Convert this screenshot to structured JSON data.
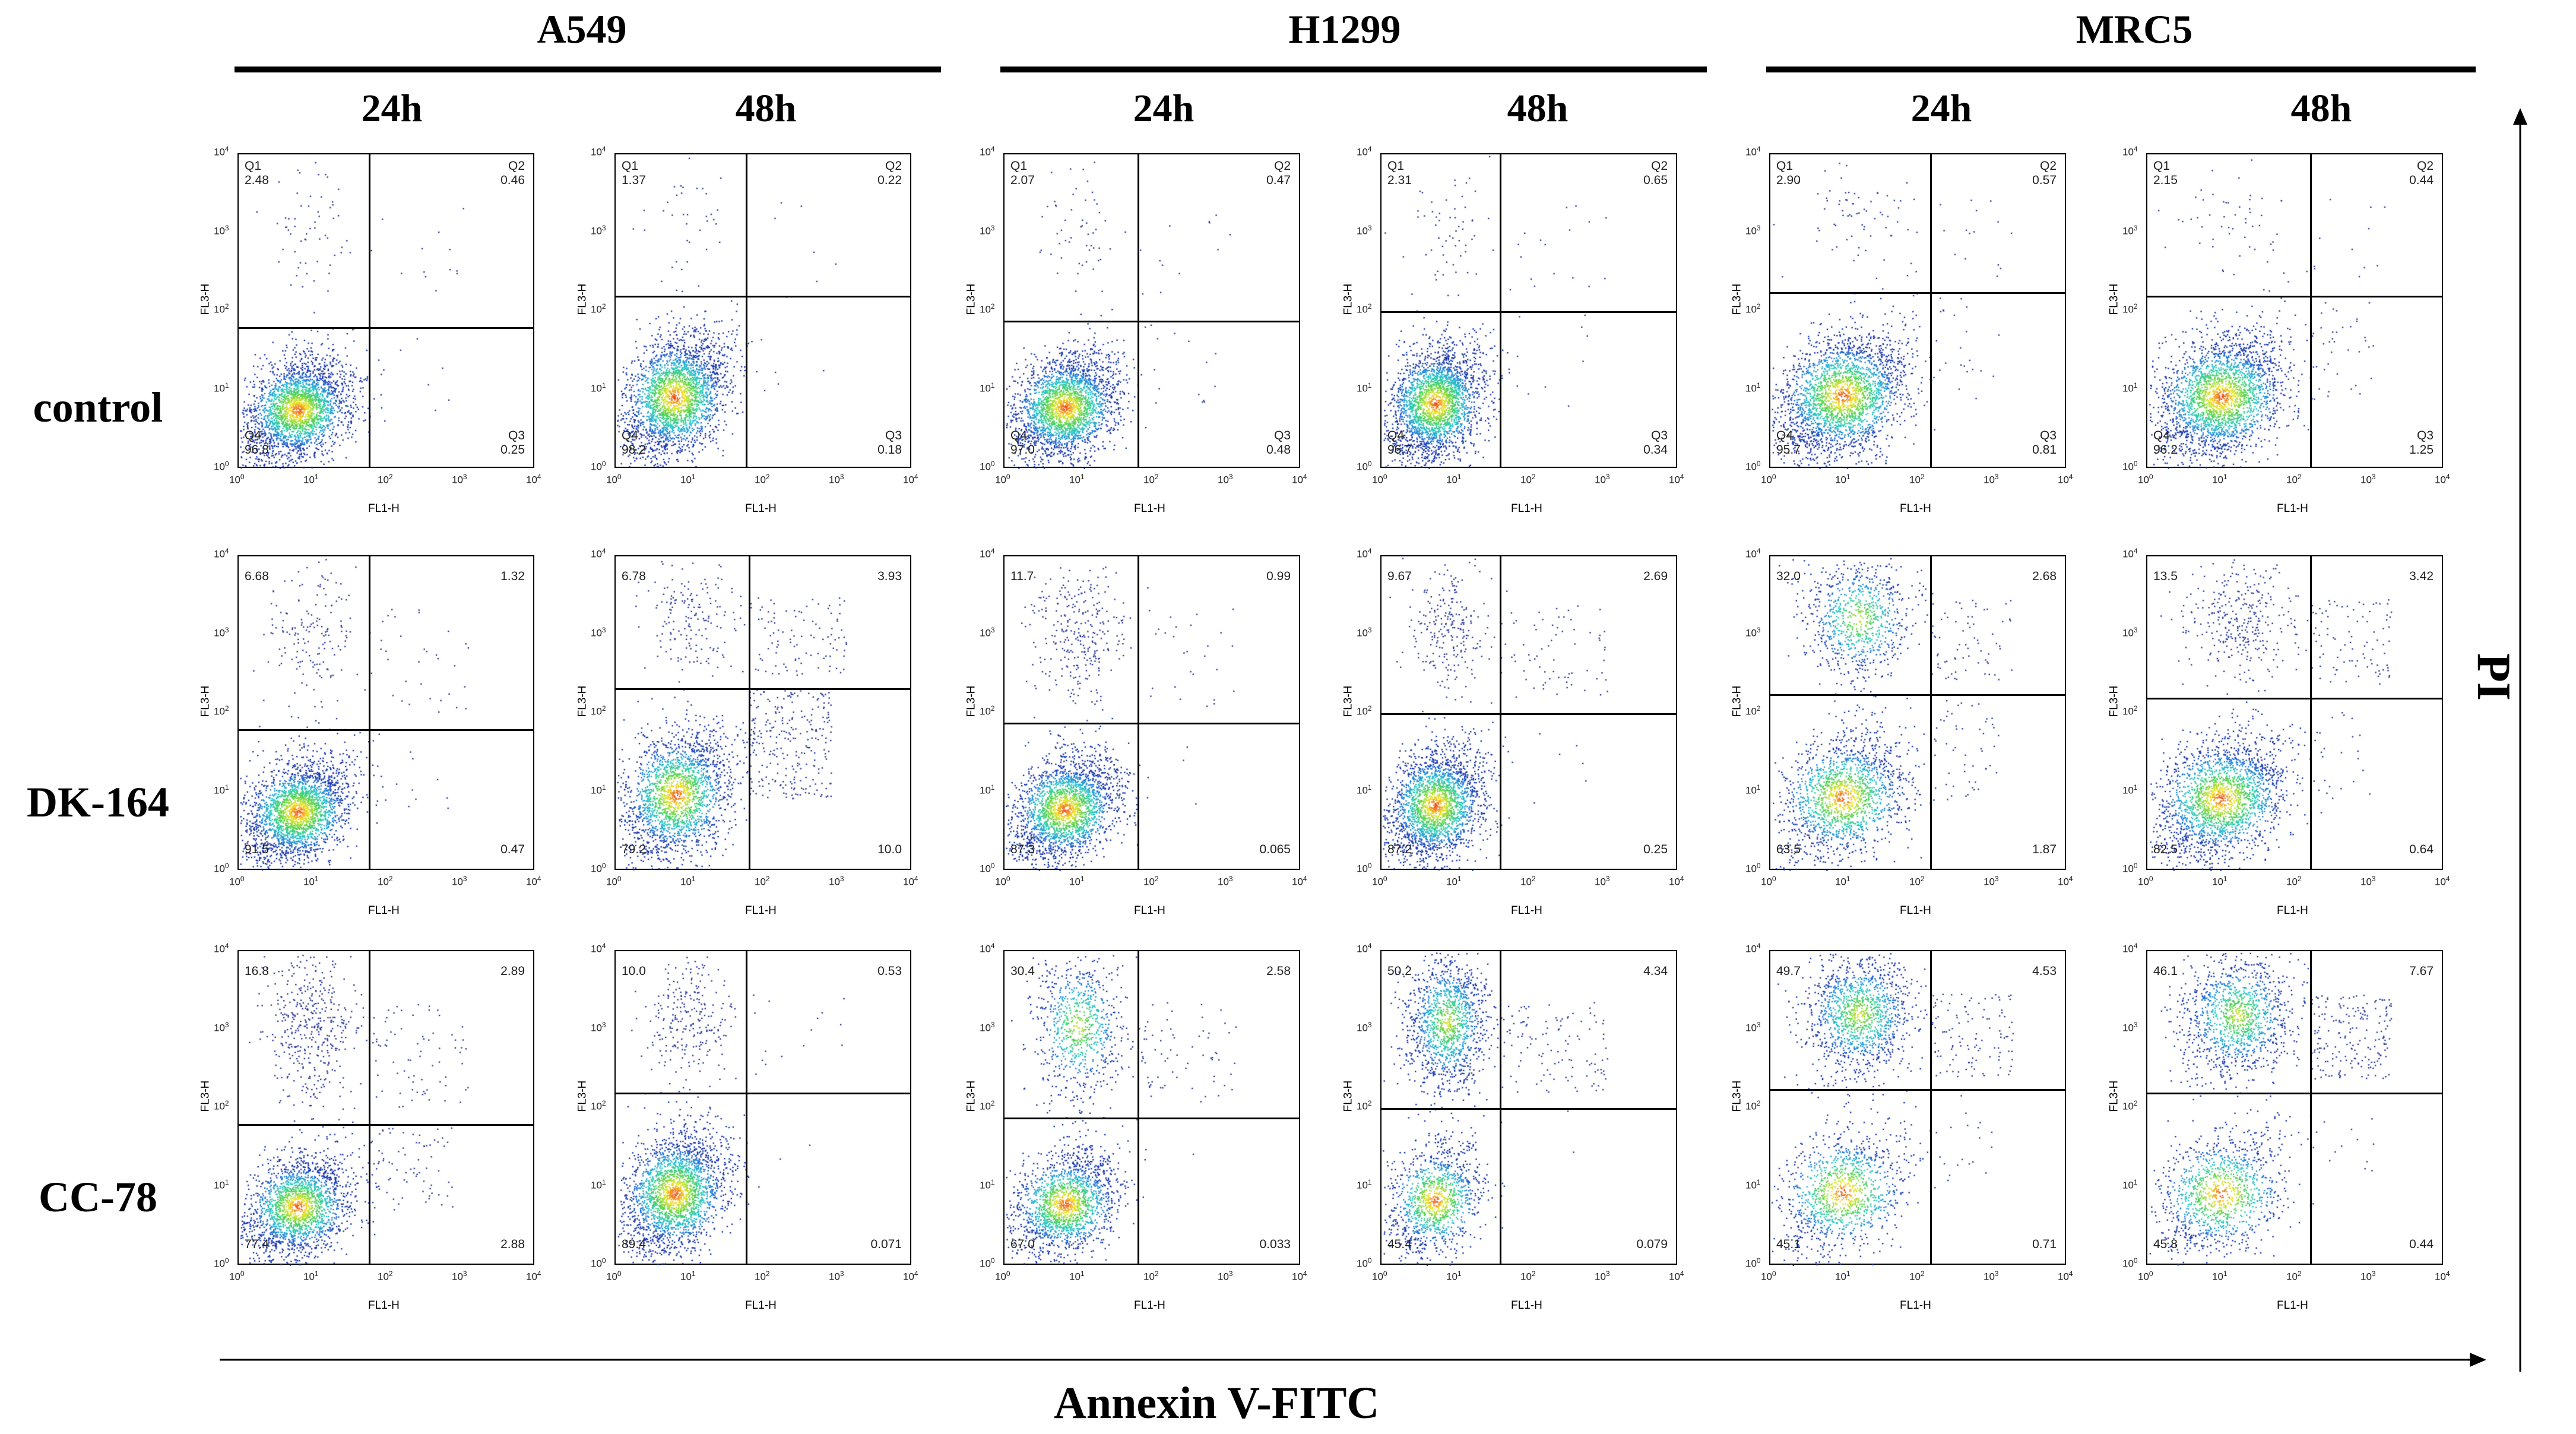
{
  "figure": {
    "cell_lines": [
      "A549",
      "H1299",
      "MRC5"
    ],
    "timepoints": [
      "24h",
      "48h"
    ],
    "treatments": [
      "control",
      "DK-164",
      "CC-78"
    ],
    "x_axis_title": "Annexin V-FITC",
    "y_axis_title": "PI",
    "panel_x_label": "FL1-H",
    "panel_y_label": "FL3-H",
    "ticks": [
      "10",
      "0",
      "1",
      "2",
      "3",
      "4"
    ],
    "quadrant_labels": [
      "Q1",
      "Q2",
      "Q3",
      "Q4"
    ]
  },
  "chart_data": [
    {
      "type": "scatter",
      "row": "control",
      "cell": "A549",
      "time": "24h",
      "q1": "2.48",
      "q2": "0.46",
      "q3": "0.25",
      "q4": "96.8",
      "labeled": true,
      "vline": 0.44,
      "hline": 0.45
    },
    {
      "type": "scatter",
      "row": "control",
      "cell": "A549",
      "time": "48h",
      "q1": "1.37",
      "q2": "0.22",
      "q3": "0.18",
      "q4": "98.2",
      "labeled": true,
      "vline": 0.44,
      "hline": 0.55
    },
    {
      "type": "scatter",
      "row": "control",
      "cell": "H1299",
      "time": "24h",
      "q1": "2.07",
      "q2": "0.47",
      "q3": "0.48",
      "q4": "97.0",
      "labeled": true,
      "vline": 0.45,
      "hline": 0.47
    },
    {
      "type": "scatter",
      "row": "control",
      "cell": "H1299",
      "time": "48h",
      "q1": "2.31",
      "q2": "0.65",
      "q3": "0.34",
      "q4": "96.7",
      "labeled": true,
      "vline": 0.4,
      "hline": 0.5
    },
    {
      "type": "scatter",
      "row": "control",
      "cell": "MRC5",
      "time": "24h",
      "q1": "2.90",
      "q2": "0.57",
      "q3": "0.81",
      "q4": "95.7",
      "labeled": true,
      "vline": 0.54,
      "hline": 0.56
    },
    {
      "type": "scatter",
      "row": "control",
      "cell": "MRC5",
      "time": "48h",
      "q1": "2.15",
      "q2": "0.44",
      "q3": "1.25",
      "q4": "96.2",
      "labeled": true,
      "vline": 0.55,
      "hline": 0.55
    },
    {
      "type": "scatter",
      "row": "DK-164",
      "cell": "A549",
      "time": "24h",
      "q1": "6.68",
      "q2": "1.32",
      "q3": "0.47",
      "q4": "91.5",
      "labeled": false,
      "vline": 0.44,
      "hline": 0.45
    },
    {
      "type": "scatter",
      "row": "DK-164",
      "cell": "A549",
      "time": "48h",
      "q1": "6.78",
      "q2": "3.93",
      "q3": "10.0",
      "q4": "79.2",
      "labeled": false,
      "vline": 0.45,
      "hline": 0.58
    },
    {
      "type": "scatter",
      "row": "DK-164",
      "cell": "H1299",
      "time": "24h",
      "q1": "11.7",
      "q2": "0.99",
      "q3": "0.065",
      "q4": "87.3",
      "labeled": false,
      "vline": 0.45,
      "hline": 0.47
    },
    {
      "type": "scatter",
      "row": "DK-164",
      "cell": "H1299",
      "time": "48h",
      "q1": "9.67",
      "q2": "2.69",
      "q3": "0.25",
      "q4": "87.2",
      "labeled": false,
      "vline": 0.4,
      "hline": 0.5
    },
    {
      "type": "scatter",
      "row": "DK-164",
      "cell": "MRC5",
      "time": "24h",
      "q1": "32.0",
      "q2": "2.68",
      "q3": "1.87",
      "q4": "63.5",
      "labeled": false,
      "vline": 0.54,
      "hline": 0.56
    },
    {
      "type": "scatter",
      "row": "DK-164",
      "cell": "MRC5",
      "time": "48h",
      "q1": "13.5",
      "q2": "3.42",
      "q3": "0.64",
      "q4": "82.5",
      "labeled": false,
      "vline": 0.55,
      "hline": 0.55
    },
    {
      "type": "scatter",
      "row": "CC-78",
      "cell": "A549",
      "time": "24h",
      "q1": "16.8",
      "q2": "2.89",
      "q3": "2.88",
      "q4": "77.4",
      "labeled": false,
      "vline": 0.44,
      "hline": 0.45
    },
    {
      "type": "scatter",
      "row": "CC-78",
      "cell": "A549",
      "time": "48h",
      "q1": "10.0",
      "q2": "0.53",
      "q3": "0.071",
      "q4": "89.4",
      "labeled": false,
      "vline": 0.44,
      "hline": 0.55
    },
    {
      "type": "scatter",
      "row": "CC-78",
      "cell": "H1299",
      "time": "24h",
      "q1": "30.4",
      "q2": "2.58",
      "q3": "0.033",
      "q4": "67.0",
      "labeled": false,
      "vline": 0.45,
      "hline": 0.47
    },
    {
      "type": "scatter",
      "row": "CC-78",
      "cell": "H1299",
      "time": "48h",
      "q1": "50.2",
      "q2": "4.34",
      "q3": "0.079",
      "q4": "45.4",
      "labeled": false,
      "vline": 0.4,
      "hline": 0.5
    },
    {
      "type": "scatter",
      "row": "CC-78",
      "cell": "MRC5",
      "time": "24h",
      "q1": "49.7",
      "q2": "4.53",
      "q3": "0.71",
      "q4": "45.1",
      "labeled": false,
      "vline": 0.54,
      "hline": 0.56
    },
    {
      "type": "scatter",
      "row": "CC-78",
      "cell": "MRC5",
      "time": "48h",
      "q1": "46.1",
      "q2": "7.67",
      "q3": "0.44",
      "q4": "45.8",
      "labeled": false,
      "vline": 0.55,
      "hline": 0.55
    }
  ]
}
